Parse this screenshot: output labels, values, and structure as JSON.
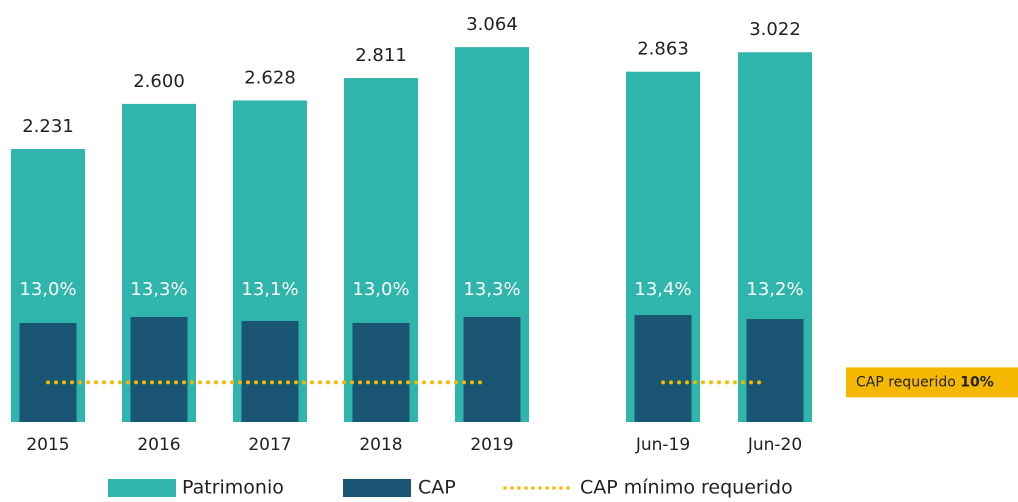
{
  "chart_data": {
    "type": "bar",
    "categories": [
      "2015",
      "2016",
      "2017",
      "2018",
      "2019",
      "Jun-19",
      "Jun-20"
    ],
    "series": [
      {
        "name": "Patrimonio",
        "color": "#2fb5ac",
        "values": [
          2231,
          2600,
          2628,
          2811,
          3064,
          2863,
          3022
        ],
        "value_labels": [
          "2.231",
          "2.600",
          "2.628",
          "2.811",
          "3.064",
          "2.863",
          "3.022"
        ]
      },
      {
        "name": "CAP",
        "color": "#1a5573",
        "axis": "y2",
        "values": [
          13.0,
          13.3,
          13.1,
          13.0,
          13.3,
          13.4,
          13.2
        ],
        "value_labels": [
          "13,0%",
          "13,3%",
          "13,1%",
          "13,0%",
          "13,3%",
          "13,4%",
          "13,2%"
        ]
      }
    ],
    "reference": {
      "name": "CAP mínimo requerido",
      "value": 10,
      "axis": "y2",
      "color": "#f5b800"
    },
    "annotation": {
      "text": "CAP requerido",
      "value_label": "10%"
    },
    "ylim": [
      0,
      3400
    ],
    "y2lim": [
      8,
      29
    ]
  }
}
